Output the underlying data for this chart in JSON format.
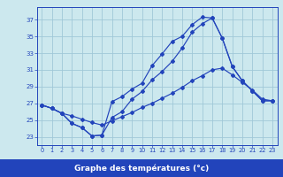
{
  "title": "Graphe des températures (°c)",
  "bg_color": "#cce8ee",
  "grid_color": "#a0c8d8",
  "line_color": "#2244bb",
  "x_ticks": [
    0,
    1,
    2,
    3,
    4,
    5,
    6,
    7,
    8,
    9,
    10,
    11,
    12,
    13,
    14,
    15,
    16,
    17,
    18,
    19,
    20,
    21,
    22,
    23
  ],
  "y_ticks": [
    23,
    25,
    27,
    29,
    31,
    33,
    35,
    37
  ],
  "ylim": [
    22.0,
    38.5
  ],
  "xlim": [
    -0.5,
    23.5
  ],
  "xlabel_bg": "#2244bb",
  "xlabel_fg": "#ffffff",
  "line1_y": [
    26.8,
    26.4,
    25.8,
    24.6,
    24.1,
    23.1,
    23.2,
    27.2,
    27.8,
    28.7,
    29.4,
    31.5,
    32.9,
    34.4,
    35.0,
    36.4,
    37.3,
    37.2,
    34.8,
    31.4,
    29.7,
    28.5,
    27.3,
    27.3
  ],
  "line2_y": [
    26.8,
    26.4,
    25.8,
    24.6,
    24.1,
    23.1,
    23.2,
    25.3,
    26.0,
    27.5,
    28.4,
    29.8,
    30.8,
    32.0,
    33.6,
    35.5,
    36.5,
    37.2,
    34.8,
    31.4,
    29.7,
    28.5,
    27.3,
    27.3
  ],
  "line3_y": [
    26.8,
    26.4,
    25.8,
    25.5,
    25.1,
    24.7,
    24.4,
    24.9,
    25.4,
    25.9,
    26.5,
    27.0,
    27.6,
    28.2,
    28.9,
    29.7,
    30.3,
    31.0,
    31.2,
    30.4,
    29.5,
    28.6,
    27.5,
    27.3
  ]
}
